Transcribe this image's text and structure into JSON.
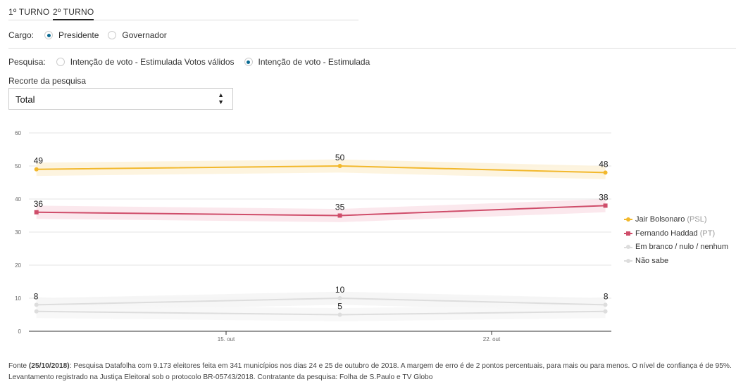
{
  "tabs": [
    {
      "label": "1º TURNO"
    },
    {
      "label": "2º TURNO"
    }
  ],
  "cargo": {
    "label": "Cargo:",
    "options": [
      "Presidente",
      "Governador"
    ],
    "selected": "Presidente"
  },
  "pesquisa": {
    "label": "Pesquisa:",
    "options": [
      "Intenção de voto - Estimulada Votos válidos",
      "Intenção de voto - Estimulada"
    ],
    "selected": "Intenção de voto - Estimulada"
  },
  "recorte": {
    "label": "Recorte da pesquisa",
    "value": "Total",
    "arrow_up": "▲",
    "arrow_down": "▼"
  },
  "legend": [
    {
      "name": "Jair Bolsonaro",
      "party": "(PSL)",
      "color": "#f2b82c"
    },
    {
      "name": "Fernando Haddad",
      "party": "(PT)",
      "color": "#cf4d6a"
    },
    {
      "name": "Em branco / nulo / nenhum",
      "party": "",
      "color": "#dddddd"
    },
    {
      "name": "Não sabe",
      "party": "",
      "color": "#dddddd"
    }
  ],
  "chart_data": {
    "type": "line",
    "x_dates": [
      "2018-10-10",
      "2018-10-18",
      "2018-10-25"
    ],
    "x_ticks": [
      {
        "date": "2018-10-15",
        "label": "15. out"
      },
      {
        "date": "2018-10-22",
        "label": "22. out"
      }
    ],
    "ylim": [
      0,
      60
    ],
    "y_ticks": [
      0,
      10,
      20,
      30,
      40,
      50,
      60
    ],
    "grid": true,
    "legend_position": "right",
    "series": [
      {
        "name": "Jair Bolsonaro (PSL)",
        "values": [
          49,
          50,
          48
        ],
        "color": "#f2b82c",
        "band": "#fdf3dc",
        "marker": "circle",
        "labels": true
      },
      {
        "name": "Fernando Haddad (PT)",
        "values": [
          36,
          35,
          38
        ],
        "color": "#cf4d6a",
        "band": "#fbe6eb",
        "marker": "square",
        "labels": true
      },
      {
        "name": "Em branco / nulo / nenhum",
        "values": [
          8,
          10,
          8
        ],
        "color": "#dddddd",
        "band": "#f5f5f5",
        "marker": "circle",
        "labels": true
      },
      {
        "name": "Não sabe",
        "values": [
          6,
          5,
          6
        ],
        "color": "#dddddd",
        "band": "#f7f7f7",
        "marker": "circle",
        "labels": [
          false,
          true,
          false
        ]
      }
    ]
  },
  "footer": {
    "fonte_label": "Fonte",
    "fonte_date": "(25/10/2018)",
    "text": ": Pesquisa Datafolha com 9.173 eleitores feita em 341 municípios nos dias 24 e 25 de outubro de 2018. A margem de erro é de 2 pontos percentuais, para mais ou para menos. O nível de confiança é de 95%.",
    "line2": "Levantamento registrado na Justiça Eleitoral sob o protocolo BR-05743/2018. Contratante da pesquisa: Folha de S.Paulo e TV Globo"
  }
}
